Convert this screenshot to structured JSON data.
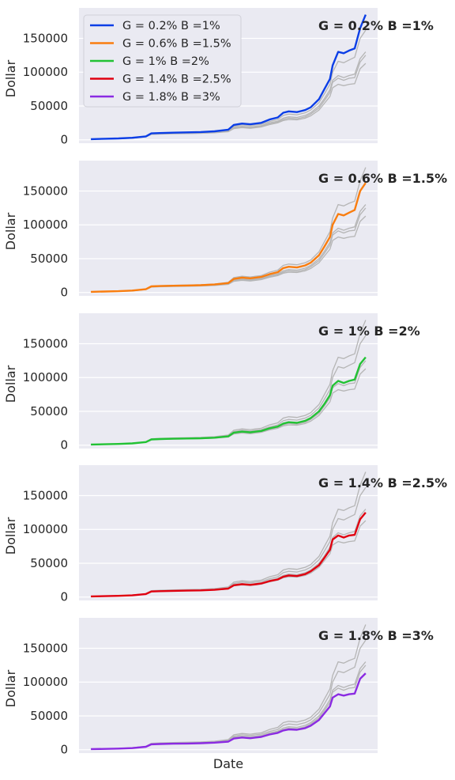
{
  "chart_data": {
    "type": "line",
    "ylabel": "Dollar",
    "xlabel": "Date",
    "ylim": [
      -5000,
      195000
    ],
    "yticks": [
      "0",
      "50000",
      "100000",
      "150000"
    ],
    "ytick_values": [
      0,
      50000,
      100000,
      150000
    ],
    "grid": true,
    "legend_placement": "upper-left",
    "background": "#eaeaf2",
    "gray_color": "#b5b5b5",
    "x": [
      0,
      0.05,
      0.1,
      0.15,
      0.2,
      0.22,
      0.25,
      0.3,
      0.35,
      0.4,
      0.45,
      0.5,
      0.52,
      0.55,
      0.58,
      0.6,
      0.62,
      0.65,
      0.68,
      0.7,
      0.72,
      0.75,
      0.78,
      0.8,
      0.83,
      0.85,
      0.87,
      0.88,
      0.9,
      0.92,
      0.94,
      0.96,
      0.98,
      1.0
    ],
    "series": [
      {
        "name": "G = 0.2% B =1%",
        "color": "#0b3ee6",
        "values": [
          1000,
          1500,
          2000,
          3000,
          5000,
          9500,
          10000,
          10500,
          11000,
          11500,
          12500,
          15000,
          22000,
          24000,
          23000,
          24000,
          25000,
          30000,
          33000,
          40000,
          42000,
          41000,
          44000,
          48000,
          60000,
          75000,
          90000,
          110000,
          130000,
          128000,
          132000,
          135000,
          165000,
          185000
        ]
      },
      {
        "name": "G = 0.6% B =1.5%",
        "color": "#f97d0f",
        "values": [
          1000,
          1400,
          1900,
          2800,
          4800,
          9000,
          9500,
          10000,
          10300,
          10800,
          11800,
          14000,
          20000,
          22000,
          21000,
          22000,
          23000,
          27000,
          30000,
          36000,
          38000,
          37000,
          40000,
          44000,
          55000,
          68000,
          82000,
          100000,
          116000,
          114000,
          118000,
          122000,
          150000,
          162000
        ]
      },
      {
        "name": "G = 1% B =2%",
        "color": "#22c234",
        "values": [
          1000,
          1350,
          1800,
          2600,
          4600,
          8500,
          9000,
          9500,
          9800,
          10200,
          11000,
          13000,
          18500,
          20000,
          19000,
          20000,
          21000,
          25000,
          27500,
          32000,
          34000,
          33000,
          36000,
          40000,
          50000,
          61000,
          74000,
          88000,
          95000,
          92000,
          95000,
          97000,
          120000,
          130000
        ]
      },
      {
        "name": "G = 1.4% B =2.5%",
        "color": "#e00010",
        "values": [
          1000,
          1300,
          1750,
          2500,
          4500,
          8200,
          8700,
          9200,
          9500,
          9900,
          10700,
          12500,
          17500,
          19000,
          18000,
          19000,
          20000,
          23500,
          26000,
          30000,
          32000,
          31000,
          34000,
          38000,
          47000,
          58000,
          70000,
          85000,
          91000,
          88000,
          91000,
          92000,
          115000,
          125000
        ]
      },
      {
        "name": "G = 1.8% B =3%",
        "color": "#8b2be2",
        "values": [
          1000,
          1250,
          1700,
          2400,
          4400,
          8000,
          8400,
          8900,
          9200,
          9600,
          10400,
          12000,
          16500,
          18000,
          17000,
          18000,
          19000,
          22500,
          25000,
          28500,
          30000,
          29500,
          32000,
          35500,
          44000,
          54000,
          64000,
          77000,
          82000,
          80000,
          82000,
          83000,
          105000,
          113000
        ]
      }
    ],
    "panels": [
      {
        "annotation": "G = 0.2% B =1%",
        "highlight": 0
      },
      {
        "annotation": "G = 0.6% B =1.5%",
        "highlight": 1
      },
      {
        "annotation": "G = 1% B =2%",
        "highlight": 2
      },
      {
        "annotation": "G = 1.4% B =2.5%",
        "highlight": 3
      },
      {
        "annotation": "G = 1.8% B =3%",
        "highlight": 4
      }
    ]
  }
}
